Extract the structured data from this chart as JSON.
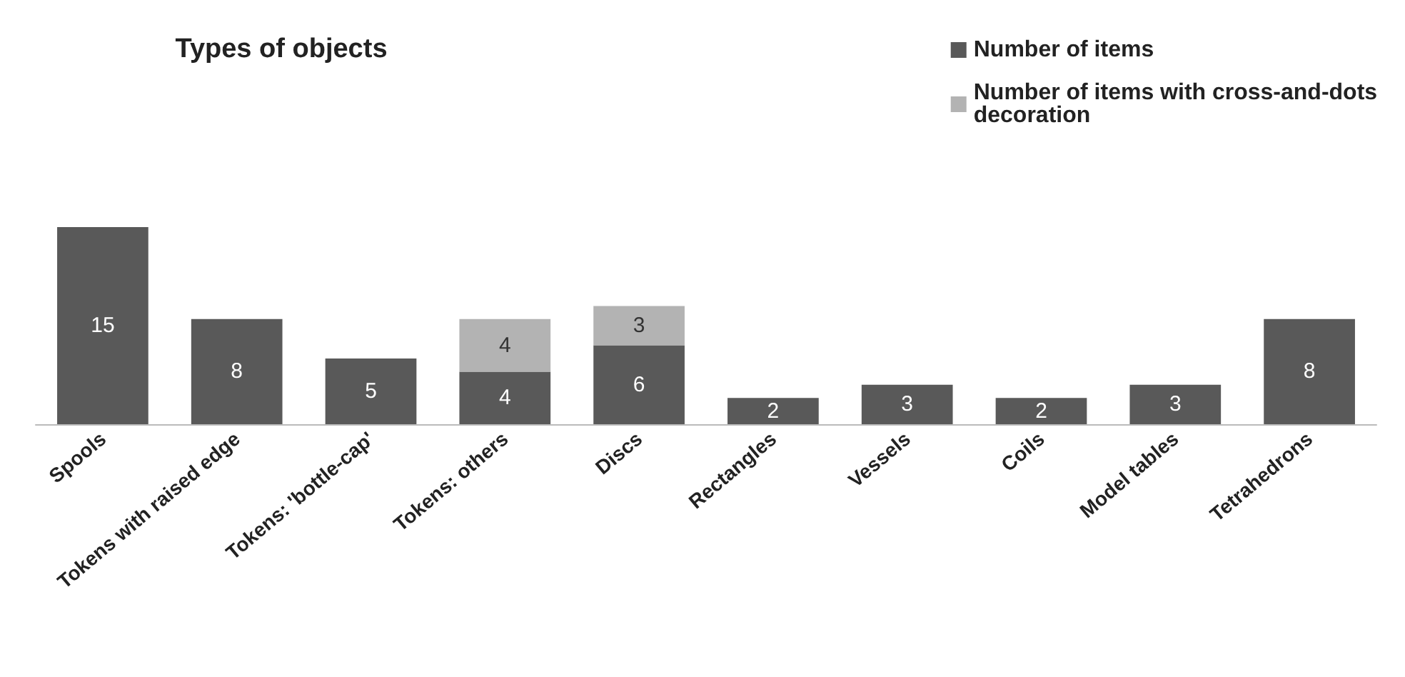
{
  "chart_data": {
    "type": "bar",
    "title": "Types of objects",
    "categories": [
      "Spools",
      "Tokens with raised edge",
      "Tokens: 'bottle-cap'",
      "Tokens: others",
      "Discs",
      "Rectangles",
      "Vessels",
      "Coils",
      "Model tables",
      "Tetrahedrons"
    ],
    "stacked": true,
    "data_labels": true,
    "legend": "top right",
    "series": [
      {
        "name": "Number of items",
        "color": "#595959",
        "values": [
          15,
          8,
          5,
          4,
          6,
          2,
          3,
          2,
          3,
          8
        ]
      },
      {
        "name": "Number of items with cross-and-dots decoration",
        "color": "#b3b3b3",
        "values": [
          null,
          null,
          null,
          4,
          3,
          null,
          null,
          null,
          null,
          null
        ]
      }
    ]
  }
}
